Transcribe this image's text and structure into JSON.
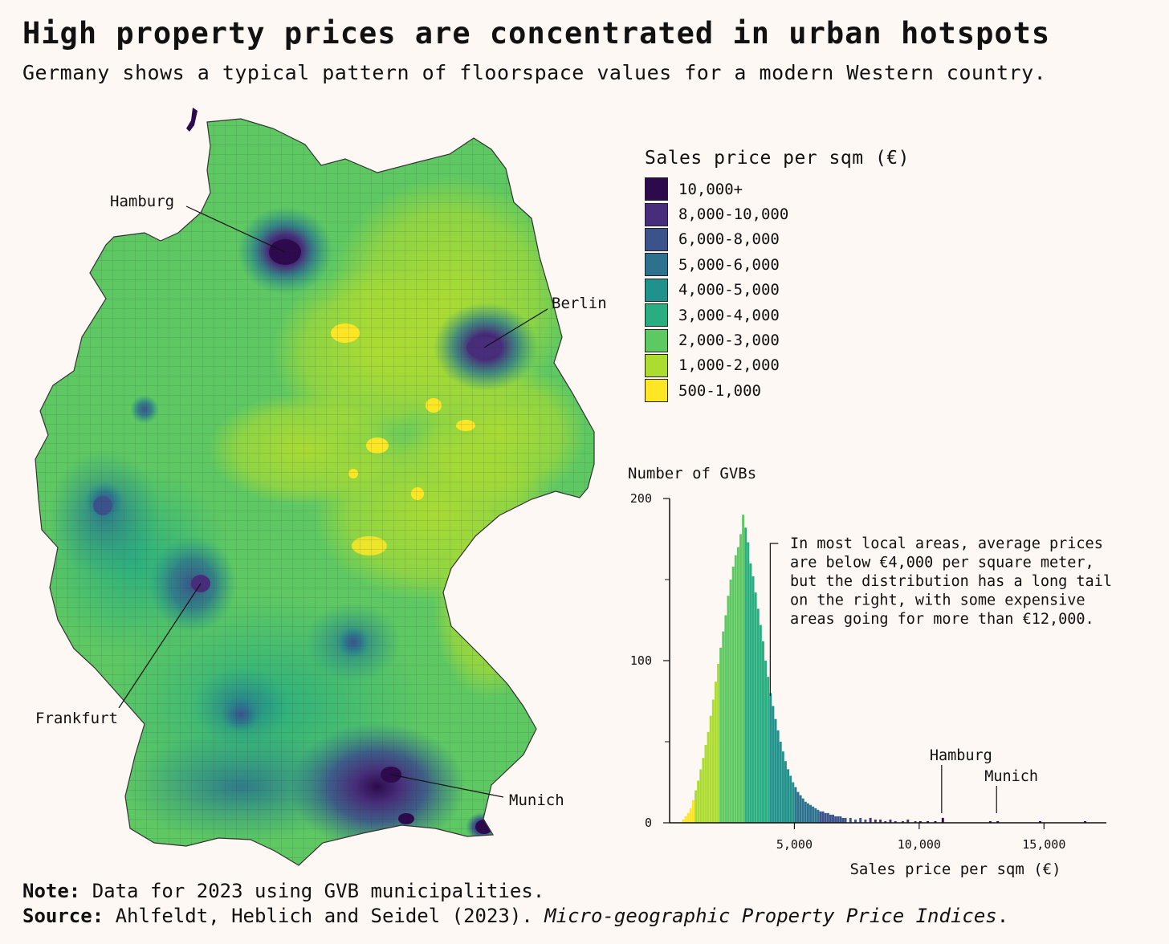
{
  "title": "High property prices are concentrated in urban hotspots",
  "subtitle": "Germany shows a typical pattern of floorspace values for a modern Western country.",
  "map": {
    "cities": [
      {
        "name": "Hamburg"
      },
      {
        "name": "Berlin"
      },
      {
        "name": "Frankfurt"
      },
      {
        "name": "Munich"
      }
    ]
  },
  "legend": {
    "title": "Sales price per sqm (€)",
    "items": [
      {
        "label": "10,000+",
        "color": "#2d0a4e"
      },
      {
        "label": "8,000-10,000",
        "color": "#472d7b"
      },
      {
        "label": "6,000-8,000",
        "color": "#3b528b"
      },
      {
        "label": "5,000-6,000",
        "color": "#2c728e"
      },
      {
        "label": "4,000-5,000",
        "color": "#21918c"
      },
      {
        "label": "3,000-4,000",
        "color": "#28ae80"
      },
      {
        "label": "2,000-3,000",
        "color": "#5ec962"
      },
      {
        "label": "1,000-2,000",
        "color": "#addc30"
      },
      {
        "label": "500-1,000",
        "color": "#fde725"
      }
    ]
  },
  "chart_data": {
    "type": "bar",
    "title": "Number of GVBs",
    "xlabel": "Sales price per sqm (€)",
    "ylabel": "Number of GVBs",
    "xlim": [
      0,
      17500
    ],
    "ylim": [
      0,
      200
    ],
    "xticks": [
      5000,
      10000,
      15000
    ],
    "xtick_labels": [
      "5,000",
      "10,000",
      "15,000"
    ],
    "yticks": [
      0,
      100,
      200
    ],
    "ytick_labels": [
      "0",
      "100",
      "200"
    ],
    "bin_width": 100,
    "bins": [
      {
        "x": 500,
        "y": 2
      },
      {
        "x": 600,
        "y": 4
      },
      {
        "x": 700,
        "y": 6
      },
      {
        "x": 800,
        "y": 9
      },
      {
        "x": 900,
        "y": 14
      },
      {
        "x": 1000,
        "y": 20
      },
      {
        "x": 1100,
        "y": 26
      },
      {
        "x": 1200,
        "y": 33
      },
      {
        "x": 1300,
        "y": 40
      },
      {
        "x": 1400,
        "y": 48
      },
      {
        "x": 1500,
        "y": 56
      },
      {
        "x": 1600,
        "y": 66
      },
      {
        "x": 1700,
        "y": 76
      },
      {
        "x": 1800,
        "y": 87
      },
      {
        "x": 1900,
        "y": 98
      },
      {
        "x": 2000,
        "y": 108
      },
      {
        "x": 2100,
        "y": 118
      },
      {
        "x": 2200,
        "y": 128
      },
      {
        "x": 2300,
        "y": 140
      },
      {
        "x": 2400,
        "y": 150
      },
      {
        "x": 2500,
        "y": 158
      },
      {
        "x": 2600,
        "y": 165
      },
      {
        "x": 2700,
        "y": 170
      },
      {
        "x": 2800,
        "y": 178
      },
      {
        "x": 2900,
        "y": 190
      },
      {
        "x": 3000,
        "y": 182
      },
      {
        "x": 3100,
        "y": 173
      },
      {
        "x": 3200,
        "y": 160
      },
      {
        "x": 3300,
        "y": 152
      },
      {
        "x": 3400,
        "y": 142
      },
      {
        "x": 3500,
        "y": 132
      },
      {
        "x": 3600,
        "y": 122
      },
      {
        "x": 3700,
        "y": 112
      },
      {
        "x": 3800,
        "y": 100
      },
      {
        "x": 3900,
        "y": 90
      },
      {
        "x": 4000,
        "y": 80
      },
      {
        "x": 4100,
        "y": 72
      },
      {
        "x": 4200,
        "y": 64
      },
      {
        "x": 4300,
        "y": 57
      },
      {
        "x": 4400,
        "y": 50
      },
      {
        "x": 4500,
        "y": 44
      },
      {
        "x": 4600,
        "y": 38
      },
      {
        "x": 4700,
        "y": 33
      },
      {
        "x": 4800,
        "y": 29
      },
      {
        "x": 4900,
        "y": 25
      },
      {
        "x": 5000,
        "y": 22
      },
      {
        "x": 5100,
        "y": 19
      },
      {
        "x": 5200,
        "y": 17
      },
      {
        "x": 5300,
        "y": 15
      },
      {
        "x": 5400,
        "y": 13
      },
      {
        "x": 5500,
        "y": 12
      },
      {
        "x": 5600,
        "y": 11
      },
      {
        "x": 5700,
        "y": 10
      },
      {
        "x": 5800,
        "y": 9
      },
      {
        "x": 5900,
        "y": 8
      },
      {
        "x": 6000,
        "y": 7
      },
      {
        "x": 6100,
        "y": 7
      },
      {
        "x": 6200,
        "y": 6
      },
      {
        "x": 6300,
        "y": 6
      },
      {
        "x": 6400,
        "y": 5
      },
      {
        "x": 6500,
        "y": 5
      },
      {
        "x": 6600,
        "y": 4
      },
      {
        "x": 6700,
        "y": 4
      },
      {
        "x": 6800,
        "y": 4
      },
      {
        "x": 6900,
        "y": 3
      },
      {
        "x": 7000,
        "y": 3
      },
      {
        "x": 7200,
        "y": 3
      },
      {
        "x": 7400,
        "y": 2
      },
      {
        "x": 7600,
        "y": 3
      },
      {
        "x": 7800,
        "y": 2
      },
      {
        "x": 8000,
        "y": 3
      },
      {
        "x": 8200,
        "y": 2
      },
      {
        "x": 8400,
        "y": 2
      },
      {
        "x": 8600,
        "y": 1
      },
      {
        "x": 8800,
        "y": 2
      },
      {
        "x": 9000,
        "y": 1
      },
      {
        "x": 9300,
        "y": 1
      },
      {
        "x": 9500,
        "y": 2
      },
      {
        "x": 9800,
        "y": 1
      },
      {
        "x": 10000,
        "y": 1
      },
      {
        "x": 10300,
        "y": 1
      },
      {
        "x": 10600,
        "y": 1
      },
      {
        "x": 10900,
        "y": 3
      },
      {
        "x": 12800,
        "y": 1
      },
      {
        "x": 13100,
        "y": 1
      },
      {
        "x": 14800,
        "y": 1
      },
      {
        "x": 16600,
        "y": 1
      }
    ],
    "annotations": [
      {
        "text": "Hamburg",
        "x": 10900
      },
      {
        "text": "Munich",
        "x": 13100
      }
    ],
    "note_x": 4000,
    "note_lines": [
      "In most local areas, average prices",
      "are below €4,000 per square meter,",
      "but the distribution has a long tail",
      "on the right, with some expensive",
      "areas going for more than €12,000."
    ]
  },
  "footer": {
    "note_label": "Note:",
    "note_text": " Data for 2023 using GVB municipalities.",
    "source_label": "Source:",
    "source_text": " Ahlfeldt, Heblich and Seidel (2023). ",
    "source_title": "Micro-geographic Property Price Indices",
    "source_end": "."
  }
}
